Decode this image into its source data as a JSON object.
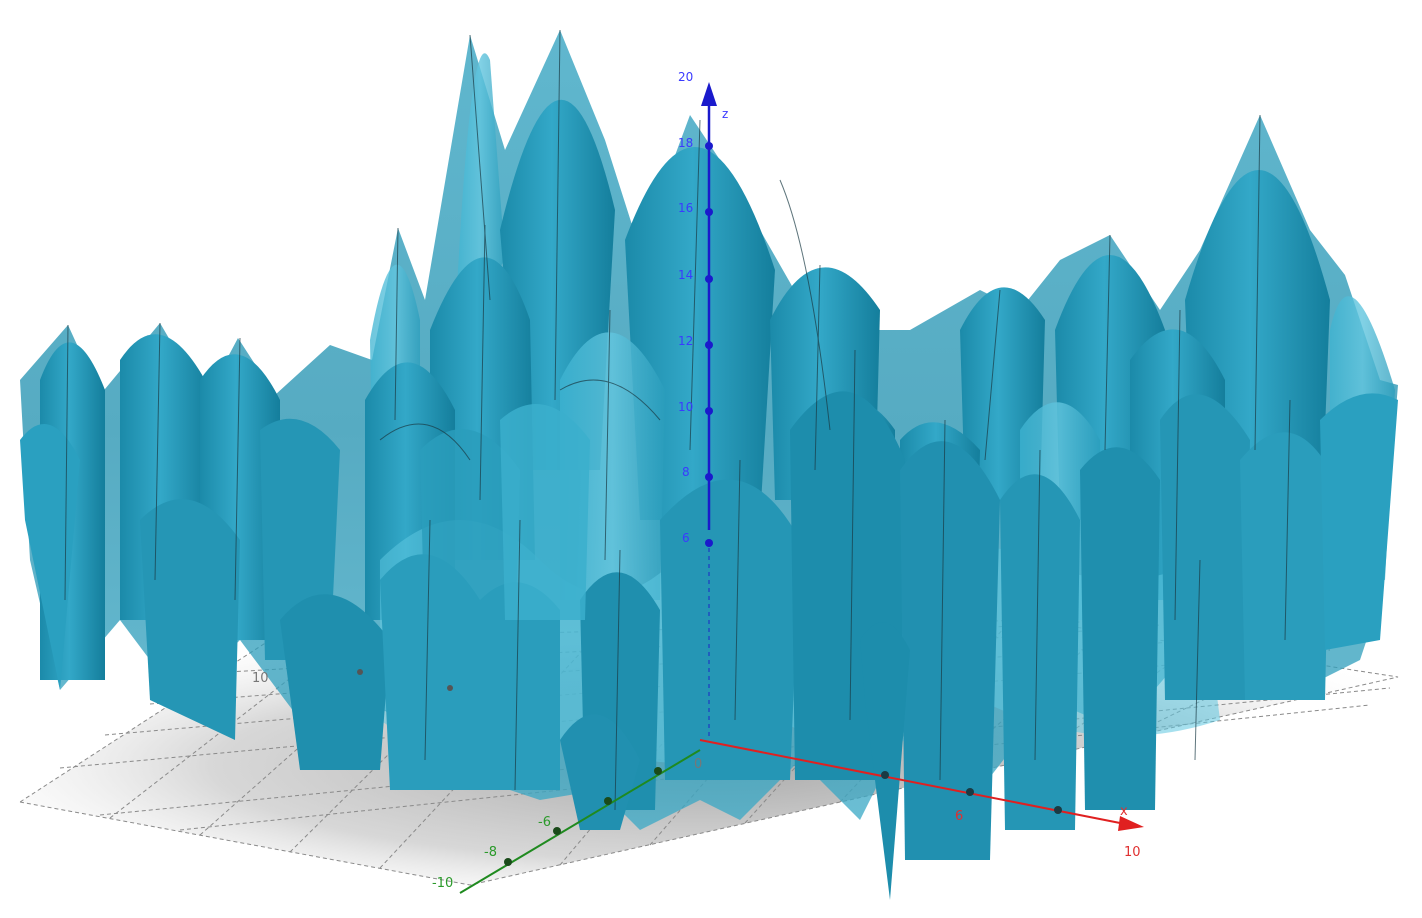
{
  "view": {
    "name": "3D Graphics",
    "surface_color": "#2a9ebd",
    "surface_highlight": "#5cc6e0",
    "axis_colors": {
      "x": "#e02020",
      "y": "#1f8a1f",
      "z": "#1a1acc"
    }
  },
  "axes": {
    "z": {
      "label": "z",
      "ticks": [
        "6",
        "8",
        "10",
        "12",
        "14",
        "16",
        "18",
        "20"
      ]
    },
    "x": {
      "label": "x",
      "ticks": [
        "6",
        "10"
      ]
    },
    "y": {
      "ticks": [
        "-6",
        "-8",
        "-10"
      ]
    },
    "grid_ticks": [
      "10",
      "0"
    ]
  }
}
